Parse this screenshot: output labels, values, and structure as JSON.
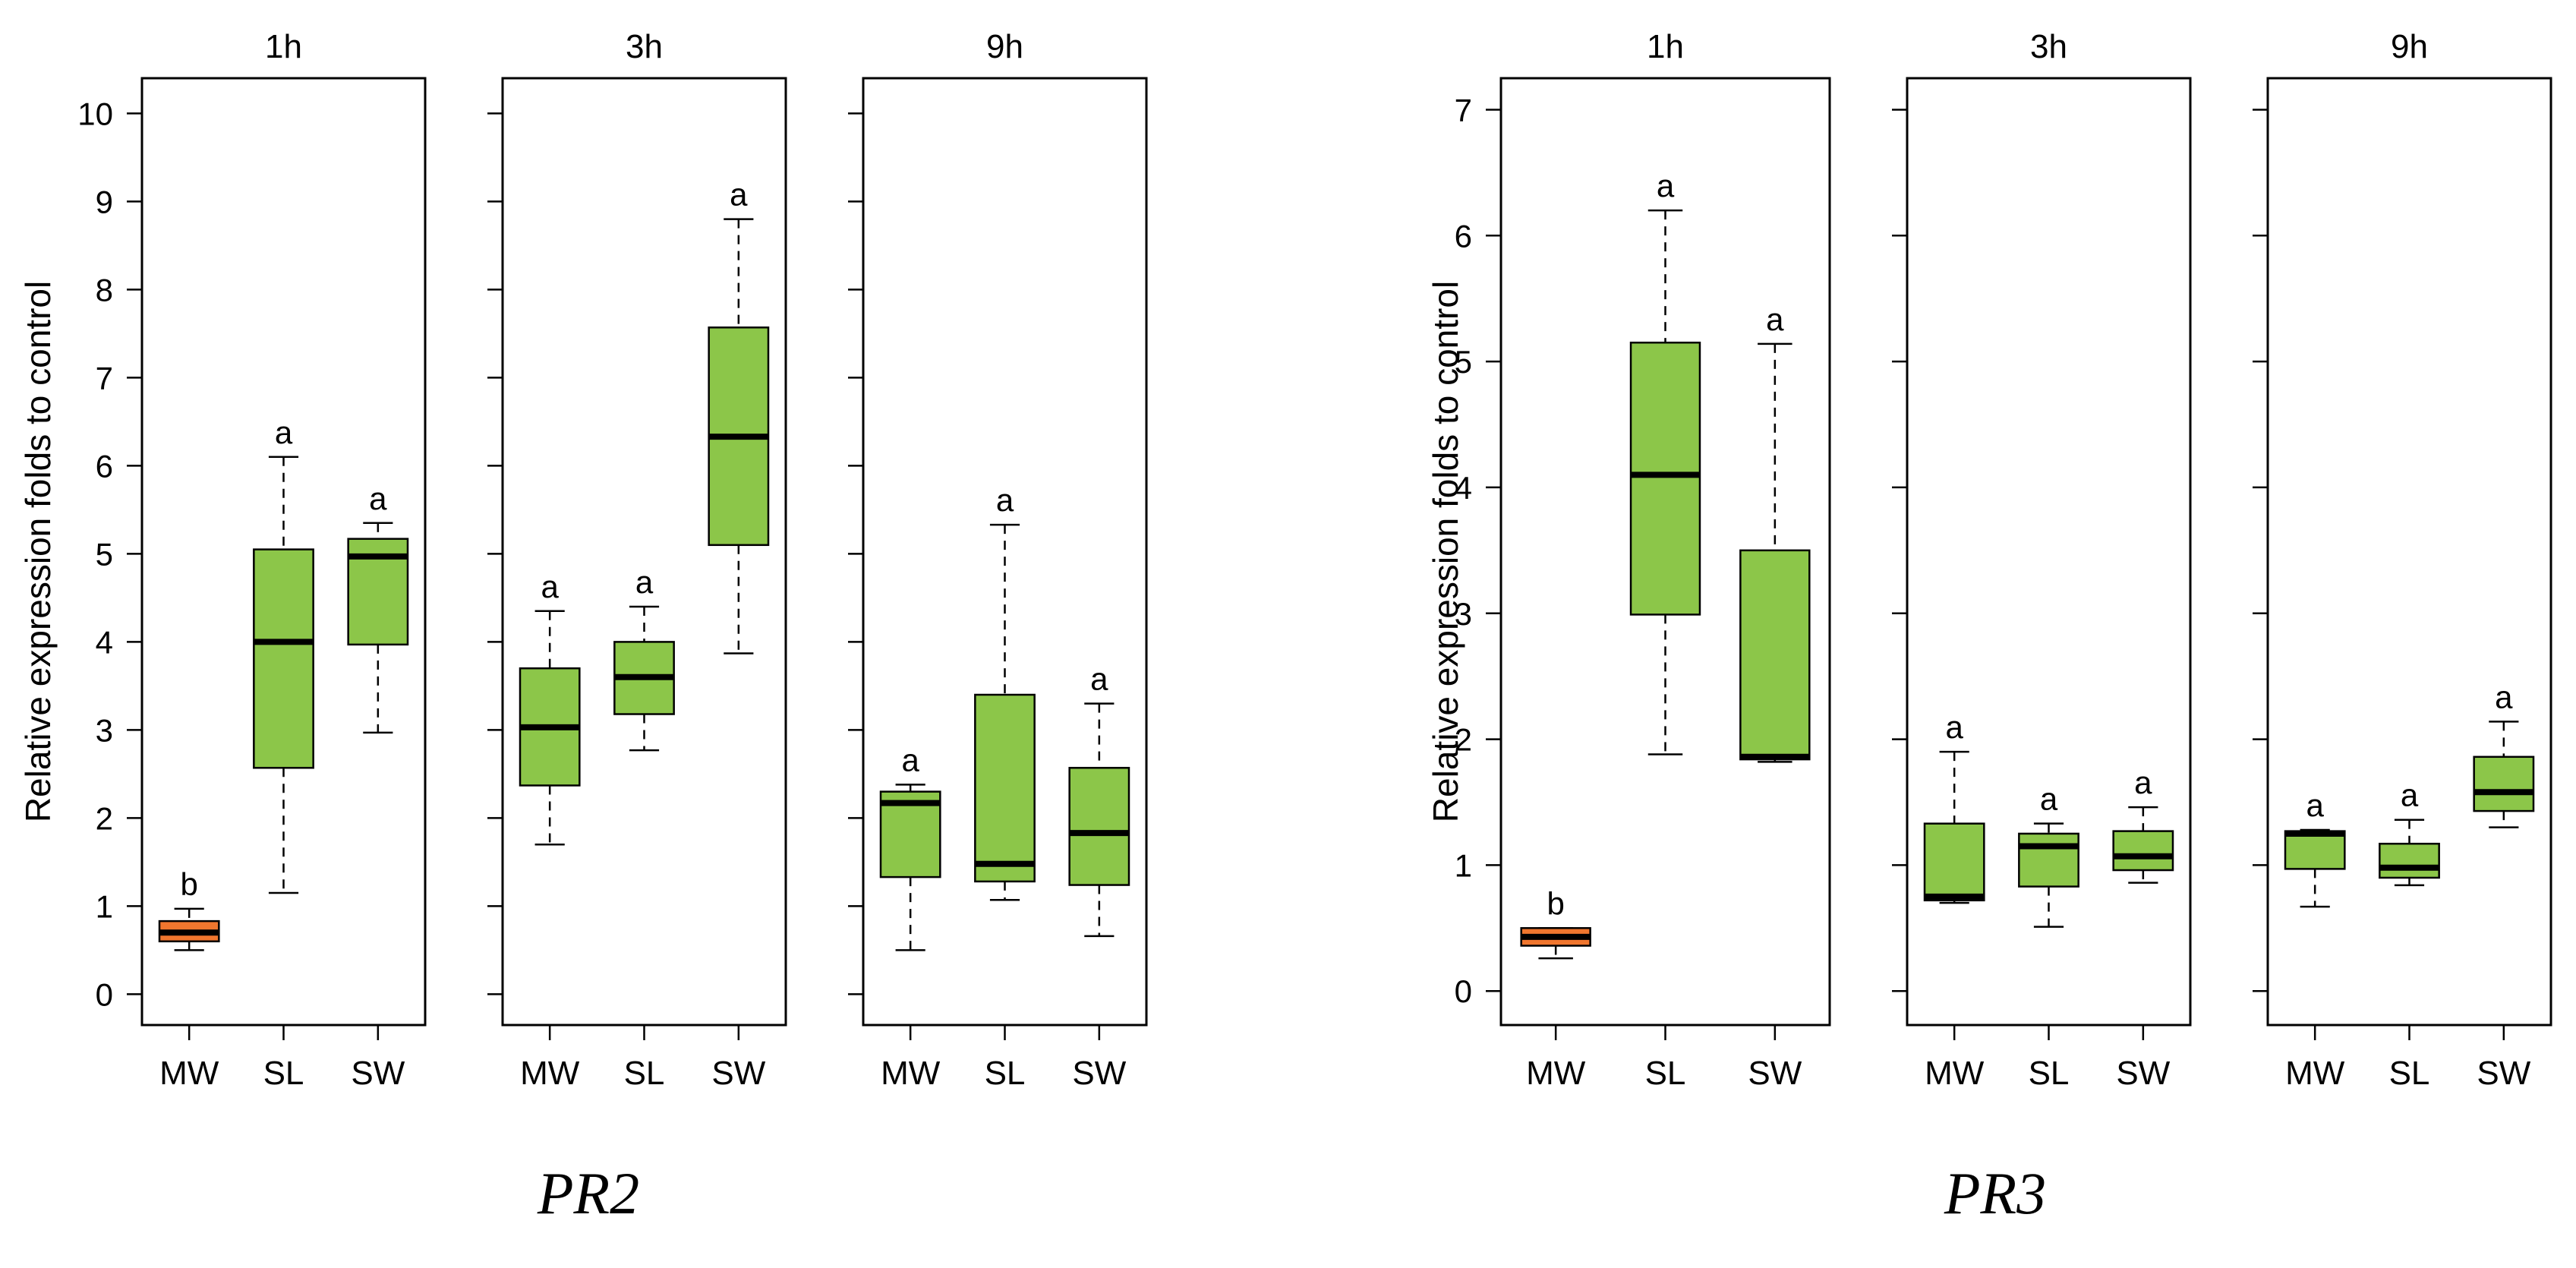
{
  "chart_data": [
    {
      "type": "boxplot",
      "gene": "PR2",
      "ylabel": "Relative expression folds to control",
      "ylim": [
        -0.35,
        10.4
      ],
      "yticks": [
        0,
        1,
        2,
        3,
        4,
        5,
        6,
        7,
        8,
        9,
        10
      ],
      "categories": [
        "MW",
        "SL",
        "SW"
      ],
      "colors": {
        "MW_1h": "#f0762e",
        "default": "#8cc649"
      },
      "panels": [
        {
          "title": "1h",
          "boxes": [
            {
              "category": "MW",
              "min": 0.5,
              "q1": 0.6,
              "median": 0.7,
              "q3": 0.83,
              "max": 0.97,
              "letter": "b",
              "color": "#f0762e"
            },
            {
              "category": "SL",
              "min": 1.15,
              "q1": 2.57,
              "median": 4.0,
              "q3": 5.05,
              "max": 6.1,
              "letter": "a",
              "color": "#8cc649"
            },
            {
              "category": "SW",
              "min": 2.97,
              "q1": 3.97,
              "median": 4.97,
              "q3": 5.17,
              "max": 5.35,
              "letter": "a",
              "color": "#8cc649"
            }
          ]
        },
        {
          "title": "3h",
          "boxes": [
            {
              "category": "MW",
              "min": 1.7,
              "q1": 2.37,
              "median": 3.03,
              "q3": 3.7,
              "max": 4.35,
              "letter": "a",
              "color": "#8cc649"
            },
            {
              "category": "SL",
              "min": 2.77,
              "q1": 3.18,
              "median": 3.6,
              "q3": 4.0,
              "max": 4.4,
              "letter": "a",
              "color": "#8cc649"
            },
            {
              "category": "SW",
              "min": 3.87,
              "q1": 5.1,
              "median": 6.33,
              "q3": 7.57,
              "max": 8.8,
              "letter": "a",
              "color": "#8cc649"
            }
          ]
        },
        {
          "title": "9h",
          "boxes": [
            {
              "category": "MW",
              "min": 0.5,
              "q1": 1.33,
              "median": 2.17,
              "q3": 2.3,
              "max": 2.38,
              "letter": "a",
              "color": "#8cc649"
            },
            {
              "category": "SL",
              "min": 1.07,
              "q1": 1.28,
              "median": 1.48,
              "q3": 3.4,
              "max": 5.33,
              "letter": "a",
              "color": "#8cc649"
            },
            {
              "category": "SW",
              "min": 0.66,
              "q1": 1.24,
              "median": 1.83,
              "q3": 2.57,
              "max": 3.3,
              "letter": "a",
              "color": "#8cc649"
            }
          ]
        }
      ]
    },
    {
      "type": "boxplot",
      "gene": "PR3",
      "ylabel": "Relative expression folds to control",
      "ylim": [
        -0.27,
        7.25
      ],
      "yticks": [
        0,
        1,
        2,
        3,
        4,
        5,
        6,
        7
      ],
      "categories": [
        "MW",
        "SL",
        "SW"
      ],
      "colors": {
        "MW_1h": "#f0762e",
        "default": "#8cc649"
      },
      "panels": [
        {
          "title": "1h",
          "boxes": [
            {
              "category": "MW",
              "min": 0.26,
              "q1": 0.36,
              "median": 0.43,
              "q3": 0.5,
              "max": 0.5,
              "letter": "b",
              "color": "#f0762e"
            },
            {
              "category": "SL",
              "min": 1.88,
              "q1": 2.99,
              "median": 4.1,
              "q3": 5.15,
              "max": 6.2,
              "letter": "a",
              "color": "#8cc649"
            },
            {
              "category": "SW",
              "min": 1.82,
              "q1": 1.84,
              "median": 1.86,
              "q3": 3.5,
              "max": 5.14,
              "letter": "a",
              "color": "#8cc649"
            }
          ]
        },
        {
          "title": "3h",
          "boxes": [
            {
              "category": "MW",
              "min": 0.7,
              "q1": 0.72,
              "median": 0.75,
              "q3": 1.33,
              "max": 1.9,
              "letter": "a",
              "color": "#8cc649"
            },
            {
              "category": "SL",
              "min": 0.51,
              "q1": 0.83,
              "median": 1.15,
              "q3": 1.25,
              "max": 1.33,
              "letter": "a",
              "color": "#8cc649"
            },
            {
              "category": "SW",
              "min": 0.86,
              "q1": 0.96,
              "median": 1.07,
              "q3": 1.27,
              "max": 1.46,
              "letter": "a",
              "color": "#8cc649"
            }
          ]
        },
        {
          "title": "9h",
          "boxes": [
            {
              "category": "MW",
              "min": 0.67,
              "q1": 0.97,
              "median": 1.25,
              "q3": 1.27,
              "max": 1.28,
              "letter": "a",
              "color": "#8cc649"
            },
            {
              "category": "SL",
              "min": 0.84,
              "q1": 0.9,
              "median": 0.98,
              "q3": 1.17,
              "max": 1.36,
              "letter": "a",
              "color": "#8cc649"
            },
            {
              "category": "SW",
              "min": 1.3,
              "q1": 1.43,
              "median": 1.58,
              "q3": 1.86,
              "max": 2.14,
              "letter": "a",
              "color": "#8cc649"
            }
          ]
        }
      ]
    }
  ]
}
